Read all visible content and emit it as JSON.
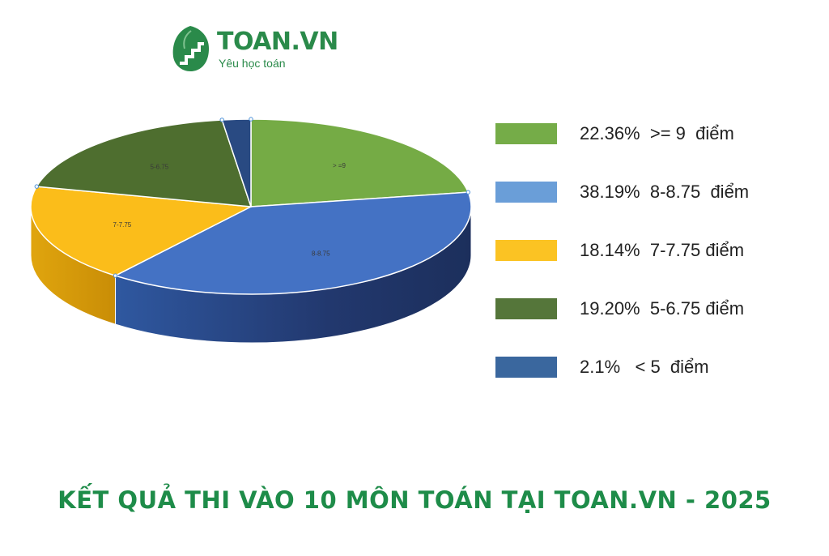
{
  "logo": {
    "name": "TOAN.VN",
    "tagline": "Yêu học toán",
    "icon": "staircase-leaf-icon",
    "color": "#2a8a4a"
  },
  "title": "KẾT QUẢ THI VÀO 10  MÔN TOÁN TẠI TOAN.VN - 2025",
  "chart_data": {
    "type": "pie",
    "title": "KẾT QUẢ THI VÀO 10  MÔN TOÁN TẠI TOAN.VN - 2025",
    "style": "3d",
    "legend_position": "right",
    "slices": [
      {
        "label": "> =9",
        "value": 22.36,
        "color": "#75ab45",
        "legend": "22.36%  >= 9  điểm",
        "legend_color": "#75ac48"
      },
      {
        "label": "8-8.75",
        "value": 38.19,
        "color": "#4472c4",
        "legend": "38.19%  8-8.75  điểm",
        "legend_color": "#6a9ed8"
      },
      {
        "label": "7-7.75",
        "value": 18.14,
        "color": "#fbbd1a",
        "legend": "18.14%  7-7.75 điểm",
        "legend_color": "#fbc323"
      },
      {
        "label": "5-6.75",
        "value": 19.2,
        "color": "#4e6e2f",
        "legend": "19.20%  5-6.75 điểm",
        "legend_color": "#55763a"
      },
      {
        "label": "",
        "value": 2.1,
        "color": "#294a82",
        "legend": "2.1%   < 5  điểm",
        "legend_color": "#3a679e"
      }
    ]
  }
}
